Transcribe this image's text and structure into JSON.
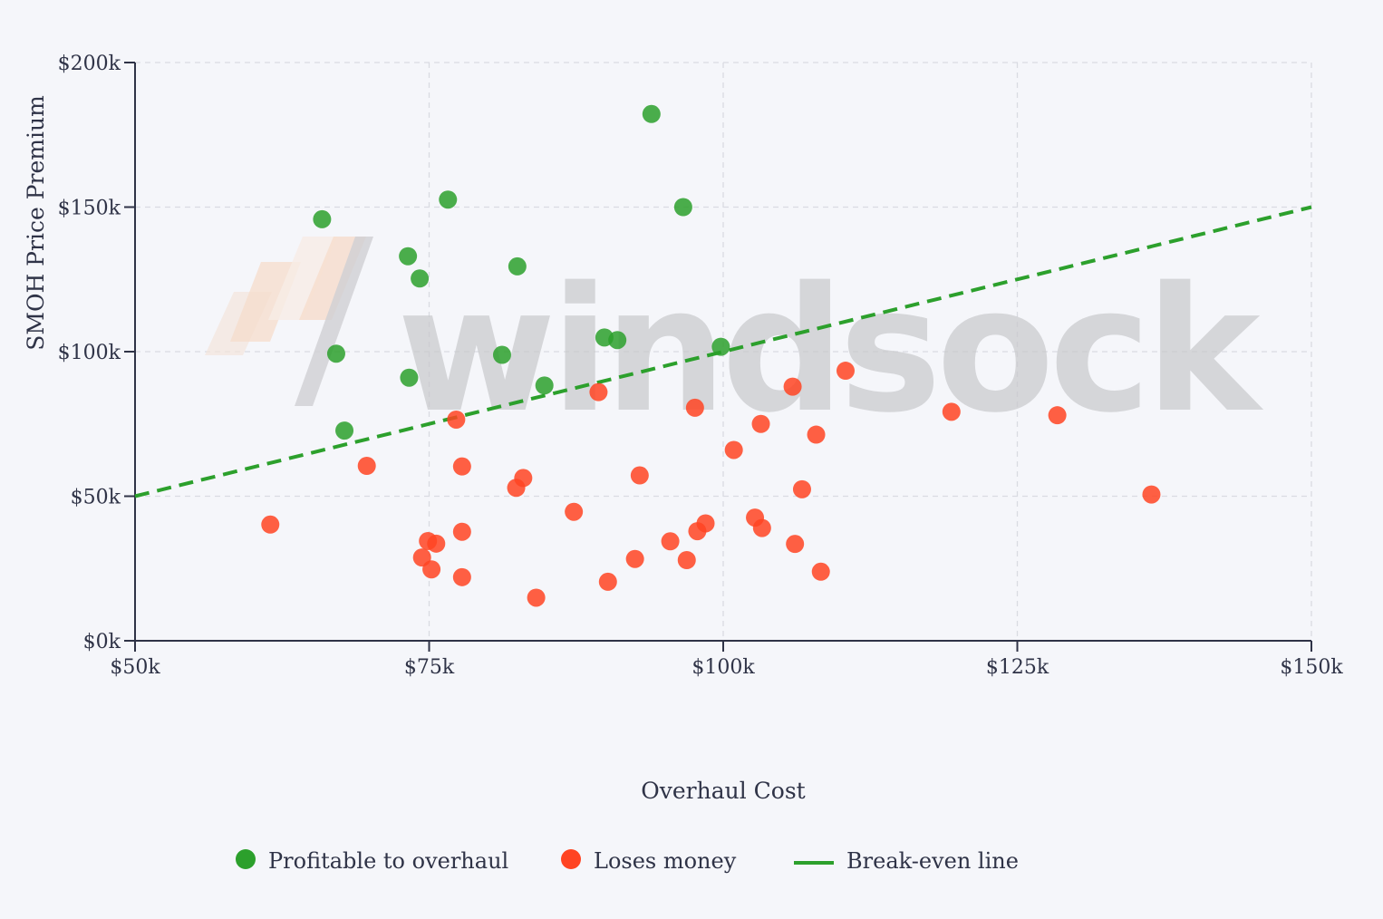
{
  "chart_data": {
    "type": "scatter",
    "title": "",
    "xlabel": "Overhaul Cost",
    "ylabel": "SMOH Price Premium",
    "xlim": [
      50000,
      150000
    ],
    "ylim": [
      0,
      200000
    ],
    "x_ticks": [
      50000,
      75000,
      100000,
      125000,
      150000
    ],
    "x_tick_labels": [
      "$50k",
      "$75k",
      "$100k",
      "$125k",
      "$150k"
    ],
    "y_ticks": [
      0,
      50000,
      100000,
      150000,
      200000
    ],
    "y_tick_labels": [
      "$0k",
      "$50k",
      "$100k",
      "$150k",
      "$200k"
    ],
    "grid": true,
    "legend_position": "bottom",
    "watermark": "windsock",
    "series": [
      {
        "name": "Profitable to overhaul",
        "color": "#2ca02c",
        "points": [
          [
            65900,
            145800
          ],
          [
            76600,
            152600
          ],
          [
            73200,
            133000
          ],
          [
            82500,
            129500
          ],
          [
            74200,
            125300
          ],
          [
            93900,
            182200
          ],
          [
            96600,
            150000
          ],
          [
            67100,
            99300
          ],
          [
            81200,
            98900
          ],
          [
            89900,
            104900
          ],
          [
            91000,
            104000
          ],
          [
            99800,
            101700
          ],
          [
            73300,
            91000
          ],
          [
            84800,
            88300
          ],
          [
            67800,
            72700
          ]
        ]
      },
      {
        "name": "Loses money",
        "color": "#ff4422",
        "points": [
          [
            61500,
            40200
          ],
          [
            69700,
            60500
          ],
          [
            74400,
            28800
          ],
          [
            74900,
            34500
          ],
          [
            75200,
            24700
          ],
          [
            75600,
            33600
          ],
          [
            77300,
            76500
          ],
          [
            77800,
            60300
          ],
          [
            77800,
            37700
          ],
          [
            77800,
            22000
          ],
          [
            82400,
            52900
          ],
          [
            83000,
            56300
          ],
          [
            84100,
            14900
          ],
          [
            87300,
            44600
          ],
          [
            89400,
            86000
          ],
          [
            90200,
            20400
          ],
          [
            92500,
            28300
          ],
          [
            92900,
            57200
          ],
          [
            95500,
            34400
          ],
          [
            96900,
            27900
          ],
          [
            97600,
            80600
          ],
          [
            97800,
            37900
          ],
          [
            98500,
            40600
          ],
          [
            100900,
            66000
          ],
          [
            102700,
            42600
          ],
          [
            103200,
            75000
          ],
          [
            103300,
            39000
          ],
          [
            105900,
            87900
          ],
          [
            106100,
            33500
          ],
          [
            106700,
            52400
          ],
          [
            107900,
            71300
          ],
          [
            108300,
            23900
          ],
          [
            110400,
            93400
          ],
          [
            119400,
            79200
          ],
          [
            128400,
            78000
          ],
          [
            136400,
            50600
          ]
        ]
      },
      {
        "name": "Break-even line",
        "color": "#2ca02c",
        "line_style": "dashed",
        "x": [
          50000,
          150000
        ],
        "y": [
          50000,
          150000
        ]
      }
    ]
  }
}
